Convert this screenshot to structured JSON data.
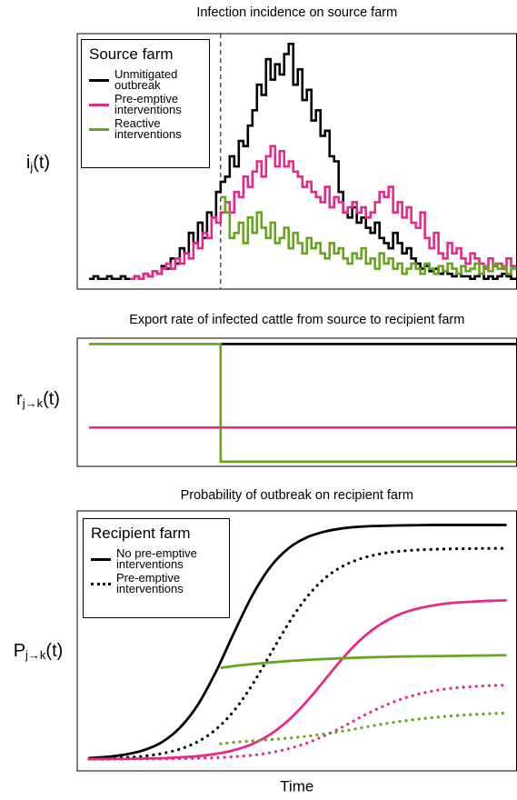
{
  "chart_data": [
    {
      "type": "step",
      "title": "Infection incidence on source farm",
      "ylabel": [
        "i",
        "j",
        "(t)"
      ],
      "xlim": [
        -2.6,
        94.2
      ],
      "ylim": [
        0,
        100
      ],
      "vline": 29,
      "legend": {
        "title": "Source farm"
      },
      "x": [
        0,
        1,
        2,
        3,
        4,
        5,
        6,
        7,
        8,
        9,
        10,
        11,
        12,
        13,
        14,
        15,
        16,
        17,
        18,
        19,
        20,
        21,
        22,
        23,
        24,
        25,
        26,
        27,
        28,
        29,
        30,
        31,
        32,
        33,
        34,
        35,
        36,
        37,
        38,
        39,
        40,
        41,
        42,
        43,
        44,
        45,
        46,
        47,
        48,
        49,
        50,
        51,
        52,
        53,
        54,
        55,
        56,
        57,
        58,
        59,
        60,
        61,
        62,
        63,
        64,
        65,
        66,
        67,
        68,
        69,
        70,
        71,
        72,
        73,
        74,
        75,
        76,
        77,
        78,
        79,
        80,
        81,
        82,
        83,
        84,
        85,
        86,
        87,
        88,
        89,
        90,
        91,
        92,
        93
      ],
      "series": [
        {
          "name": "Unmitigated outbreak",
          "color": "#000000",
          "values": [
            4,
            5,
            4,
            4,
            5,
            4,
            4,
            5,
            4,
            4,
            5,
            4,
            6,
            5,
            7,
            6,
            9,
            8,
            12,
            10,
            16,
            14,
            22,
            18,
            26,
            20,
            30,
            28,
            38,
            42,
            44,
            52,
            48,
            58,
            56,
            64,
            70,
            80,
            76,
            90,
            82,
            88,
            84,
            92,
            96,
            80,
            86,
            74,
            78,
            66,
            70,
            60,
            62,
            52,
            50,
            38,
            30,
            28,
            32,
            26,
            28,
            24,
            22,
            26,
            20,
            18,
            16,
            22,
            18,
            14,
            16,
            12,
            10,
            8,
            9,
            7,
            8,
            6,
            7,
            6,
            5,
            6,
            5,
            5,
            4,
            5,
            6,
            4,
            5,
            4,
            5,
            6,
            5,
            4
          ]
        },
        {
          "name": "Pre-emptive interventions",
          "color": "#e7298a",
          "values": [
            null,
            null,
            null,
            null,
            null,
            null,
            null,
            null,
            null,
            4,
            5,
            4,
            6,
            5,
            7,
            6,
            8,
            10,
            8,
            12,
            10,
            14,
            12,
            18,
            16,
            22,
            20,
            28,
            26,
            30,
            34,
            30,
            38,
            36,
            44,
            40,
            46,
            50,
            44,
            52,
            56,
            48,
            54,
            48,
            50,
            46,
            44,
            40,
            42,
            38,
            36,
            34,
            40,
            32,
            36,
            34,
            30,
            32,
            34,
            30,
            32,
            28,
            30,
            34,
            38,
            36,
            40,
            30,
            34,
            28,
            32,
            26,
            24,
            30,
            20,
            16,
            22,
            14,
            12,
            18,
            14,
            16,
            12,
            10,
            14,
            12,
            10,
            8,
            12,
            9,
            10,
            8,
            12,
            9
          ]
        },
        {
          "name": "Reactive interventions",
          "color": "#66a61e",
          "values": [
            null,
            null,
            null,
            null,
            null,
            null,
            null,
            null,
            null,
            null,
            null,
            null,
            null,
            null,
            null,
            null,
            null,
            null,
            null,
            null,
            null,
            null,
            null,
            null,
            null,
            null,
            null,
            null,
            null,
            36,
            30,
            20,
            22,
            26,
            18,
            28,
            22,
            30,
            24,
            20,
            26,
            18,
            20,
            24,
            16,
            22,
            18,
            14,
            20,
            16,
            18,
            14,
            12,
            18,
            14,
            16,
            12,
            10,
            14,
            12,
            16,
            10,
            12,
            8,
            14,
            10,
            12,
            8,
            10,
            6,
            8,
            10,
            8,
            6,
            10,
            8,
            6,
            9,
            7,
            10,
            8,
            6,
            9,
            7,
            8,
            10,
            6,
            9,
            7,
            10,
            8,
            9,
            6,
            8
          ]
        }
      ]
    },
    {
      "type": "step",
      "title": "Export rate of infected cattle from source to recipient farm",
      "ylabel": [
        "r",
        "j→k",
        "(t)"
      ],
      "xlim": [
        -2.6,
        94.2
      ],
      "ylim": [
        -4,
        105
      ],
      "x": [
        0,
        29,
        94
      ],
      "series": [
        {
          "color": "#000000",
          "values": [
            null,
            100,
            100
          ]
        },
        {
          "color": "#66a61e",
          "values": [
            100,
            0,
            0
          ]
        },
        {
          "color": "#e7298a",
          "values": [
            29,
            29,
            29
          ]
        }
      ]
    },
    {
      "type": "line",
      "title": "Probability of outbreak on recipient farm",
      "ylabel": [
        "P",
        "j→k",
        "(t)"
      ],
      "xlabel": "Time",
      "xlim": [
        -2.6,
        94.2
      ],
      "ylim": [
        -5,
        106
      ],
      "legend": {
        "title": "Recipient farm",
        "entries": [
          {
            "label": "No pre-emptive interventions",
            "style": "solid"
          },
          {
            "label": "Pre-emptive interventions",
            "style": "dotted"
          }
        ]
      },
      "x": [
        0,
        4,
        8,
        12,
        16,
        20,
        24,
        28,
        32,
        36,
        40,
        44,
        48,
        52,
        56,
        60,
        64,
        68,
        72,
        76,
        80,
        84,
        88,
        92
      ],
      "series": [
        {
          "color": "#000000",
          "style": "solid",
          "values": [
            0.5,
            1.0,
            2.0,
            3.8,
            7.2,
            13.4,
            23.3,
            37.5,
            54.2,
            70,
            82.2,
            90.1,
            94.7,
            97.2,
            98.6,
            99.3,
            99.6,
            99.8,
            99.9,
            100,
            100,
            100,
            100,
            100
          ]
        },
        {
          "color": "#000000",
          "style": "dotted",
          "values": [
            0.2,
            0.4,
            0.7,
            1.3,
            2.4,
            4.3,
            7.5,
            12.8,
            20.8,
            31.9,
            45,
            58.1,
            69.2,
            77.3,
            82.5,
            85.7,
            87.6,
            88.7,
            89.3,
            89.6,
            89.8,
            89.9,
            90,
            90
          ]
        },
        {
          "color": "#e7298a",
          "style": "solid",
          "values": [
            0,
            0.1,
            0.1,
            0.3,
            0.4,
            0.8,
            1.3,
            2.3,
            3.9,
            6.5,
            10.7,
            16.7,
            24.7,
            34,
            43.3,
            51.3,
            57.3,
            61.5,
            64.1,
            65.7,
            66.7,
            67.2,
            67.6,
            67.8
          ]
        },
        {
          "color": "#e7298a",
          "style": "dotted",
          "values": [
            0,
            0,
            0.1,
            0.1,
            0.1,
            0.2,
            0.4,
            0.6,
            1.1,
            1.7,
            2.8,
            4.5,
            6.9,
            10.1,
            13.9,
            18.1,
            21.9,
            25.1,
            27.5,
            29.2,
            30.3,
            30.9,
            31.4,
            31.6
          ]
        },
        {
          "color": "#66a61e",
          "style": "solid",
          "x": [
            29,
            32,
            36,
            40,
            44,
            48,
            52,
            56,
            60,
            64,
            68,
            72,
            76,
            80,
            84,
            88,
            92
          ],
          "values": [
            39,
            39.8,
            40.6,
            41.3,
            41.9,
            42.4,
            42.8,
            43.1,
            43.4,
            43.6,
            43.8,
            43.9,
            44,
            44.1,
            44.2,
            44.3,
            44.4
          ]
        },
        {
          "color": "#66a61e",
          "style": "dotted",
          "x": [
            29,
            32,
            36,
            40,
            44,
            48,
            52,
            56,
            60,
            64,
            68,
            72,
            76,
            80,
            84,
            88,
            92
          ],
          "values": [
            6.6,
            7.2,
            7.8,
            8.4,
            9,
            9.8,
            10.8,
            12,
            13.4,
            14.8,
            16,
            17,
            17.8,
            18.5,
            19,
            19.4,
            19.7
          ]
        }
      ]
    }
  ]
}
